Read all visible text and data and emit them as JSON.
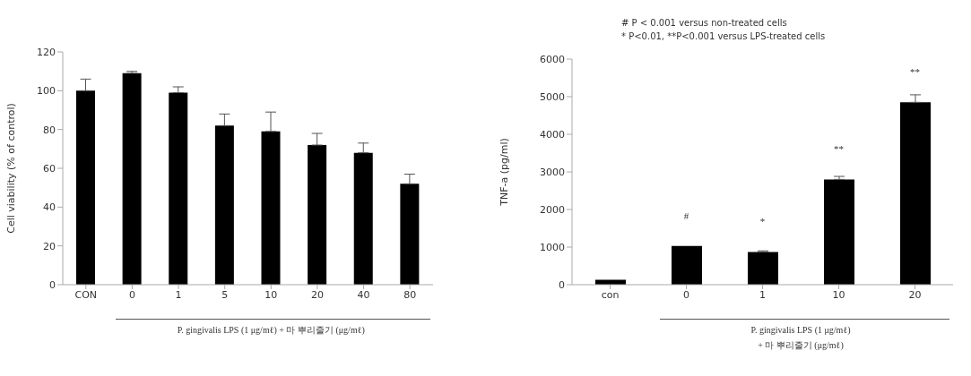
{
  "chart_data": [
    {
      "type": "bar",
      "ylabel": "Cell viability (% of control)",
      "xlabel": "P. gingivalis LPS (1 μg/mℓ) + 마 뿌리줄기 (μg/mℓ)",
      "categories": [
        "CON",
        "0",
        "1",
        "5",
        "10",
        "20",
        "40",
        "80"
      ],
      "values": [
        100,
        109,
        99,
        82,
        79,
        72,
        68,
        52
      ],
      "errors": [
        [
          100,
          106
        ],
        [
          109,
          110
        ],
        [
          99,
          102
        ],
        [
          82,
          88
        ],
        [
          79,
          89
        ],
        [
          72,
          78
        ],
        [
          68,
          73
        ],
        [
          52,
          57
        ]
      ],
      "color": "#000000",
      "ylim": [
        0,
        120
      ],
      "yticks": [
        0,
        20,
        40,
        60,
        80,
        100,
        120
      ],
      "grid": false,
      "legend": false
    },
    {
      "type": "bar",
      "ylabel": "TNF-a (pg/ml)",
      "xlabel": "P. gingivalis LPS (1 μg/mℓ)\n+ 마 뿌리줄기 (μg/mℓ)",
      "categories": [
        "con",
        "0",
        "1",
        "10",
        "20"
      ],
      "values": [
        130,
        1030,
        870,
        2800,
        4850
      ],
      "errors": [
        null,
        null,
        [
          870,
          900
        ],
        [
          2800,
          2880
        ],
        [
          4850,
          5050
        ]
      ],
      "color": "#000000",
      "ylim": [
        0,
        6000
      ],
      "yticks": [
        0,
        1000,
        2000,
        3000,
        4000,
        5000,
        6000
      ],
      "grid": false,
      "legend": false,
      "annotations": [
        "# P < 0.001 versus non-treated cells",
        "* P<0.01, **P<0.001 versus LPS-treated cells",
        {
          "text": "#",
          "x": "0",
          "y": 1030
        },
        {
          "text": "*",
          "x": "1",
          "y": 870
        },
        {
          "text": "**",
          "x": "10",
          "y": 2800
        },
        {
          "text": "**",
          "x": "20",
          "y": 4850
        }
      ]
    }
  ]
}
